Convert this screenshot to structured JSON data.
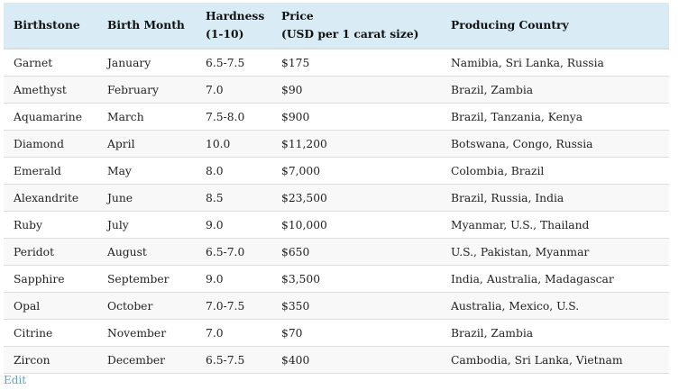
{
  "table": {
    "headers": [
      "Birthstone",
      "Birth Month",
      "Hardness\n(1-10)",
      "Price\n(USD per 1 carat size)",
      "Producing Country"
    ],
    "header_lines": [
      [
        "Birthstone"
      ],
      [
        "Birth Month"
      ],
      [
        "Hardness",
        "(1-10)"
      ],
      [
        "Price",
        "(USD per 1 carat size)"
      ],
      [
        "Producing Country"
      ]
    ],
    "rows": [
      [
        "Garnet",
        "January",
        "6.5-7.5",
        "$175",
        "Namibia, Sri Lanka, Russia"
      ],
      [
        "Amethyst",
        "February",
        "7.0",
        "$90",
        "Brazil, Zambia"
      ],
      [
        "Aquamarine",
        "March",
        "7.5-8.0",
        "$900",
        "Brazil, Tanzania, Kenya"
      ],
      [
        "Diamond",
        "April",
        "10.0",
        "$11,200",
        "Botswana, Congo, Russia"
      ],
      [
        "Emerald",
        "May",
        "8.0",
        "$7,000",
        "Colombia, Brazil"
      ],
      [
        "Alexandrite",
        "June",
        "8.5",
        "$23,500",
        "Brazil, Russia, India"
      ],
      [
        "Ruby",
        "July",
        "9.0",
        "$10,000",
        "Myanmar, U.S., Thailand"
      ],
      [
        "Peridot",
        "August",
        "6.5-7.0",
        "$650",
        "U.S., Pakistan, Myanmar"
      ],
      [
        "Sapphire",
        "September",
        "9.0",
        "$3,500",
        "India, Australia, Madagascar"
      ],
      [
        "Opal",
        "October",
        "7.0-7.5",
        "$350",
        "Australia, Mexico, U.S."
      ],
      [
        "Citrine",
        "November",
        "7.0",
        "$70",
        "Brazil, Zambia"
      ],
      [
        "Zircon",
        "December",
        "6.5-7.5",
        "$400",
        "Cambodia, Sri Lanka, Vietnam"
      ]
    ]
  },
  "edit_link": "Edit",
  "colors": {
    "header_bg": "#d9ecf5",
    "alt_row_bg": "#f8f8f8",
    "link": "#6aa3b4"
  }
}
